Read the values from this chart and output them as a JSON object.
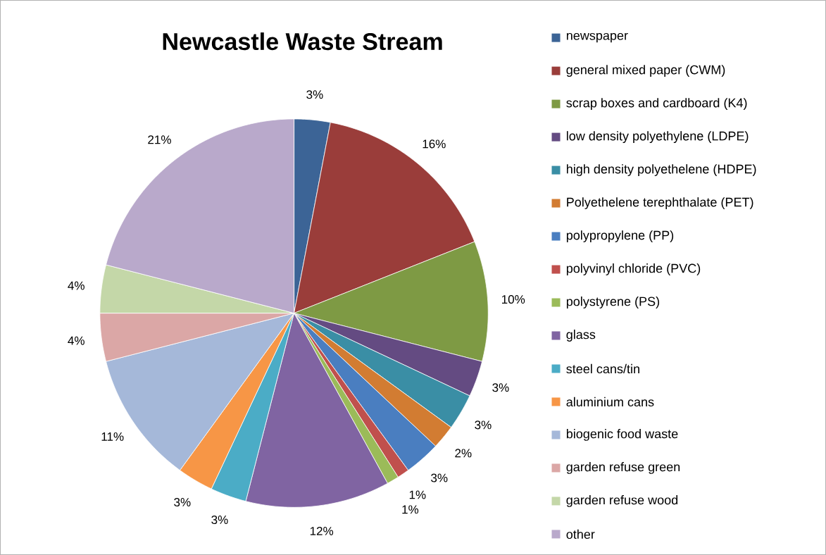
{
  "chart_data": {
    "type": "pie",
    "title": "Newcastle Waste Stream",
    "categories": [
      "newspaper",
      "general mixed paper (CWM)",
      "scrap boxes and cardboard (K4)",
      "low density polyethylene (LDPE)",
      "high density polyethelene (HDPE)",
      "Polyethelene terephthalate (PET)",
      "polypropylene (PP)",
      "polyvinyl chloride (PVC)",
      "polystyrene (PS)",
      "glass",
      "steel cans/tin",
      "aluminium cans",
      "biogenic food waste",
      "garden refuse green",
      "garden refuse wood",
      "other"
    ],
    "values": [
      3,
      16,
      10,
      3,
      3,
      2,
      3,
      1,
      1,
      12,
      3,
      3,
      11,
      4,
      4,
      21
    ],
    "value_labels": [
      "3%",
      "16%",
      "10%",
      "3%",
      "3%",
      "2%",
      "3%",
      "1%",
      "1%",
      "12%",
      "3%",
      "3%",
      "11%",
      "4%",
      "4%",
      "21%"
    ],
    "colors": [
      "#3c6496",
      "#9a3d3a",
      "#7e9a44",
      "#644b82",
      "#3a8ea5",
      "#d27c32",
      "#4a7ec0",
      "#c0504d",
      "#9bbb59",
      "#8064a2",
      "#4bacc6",
      "#f79646",
      "#a5b8d9",
      "#dba7a6",
      "#c4d7a8",
      "#b9a9cb"
    ],
    "legend": "right"
  }
}
